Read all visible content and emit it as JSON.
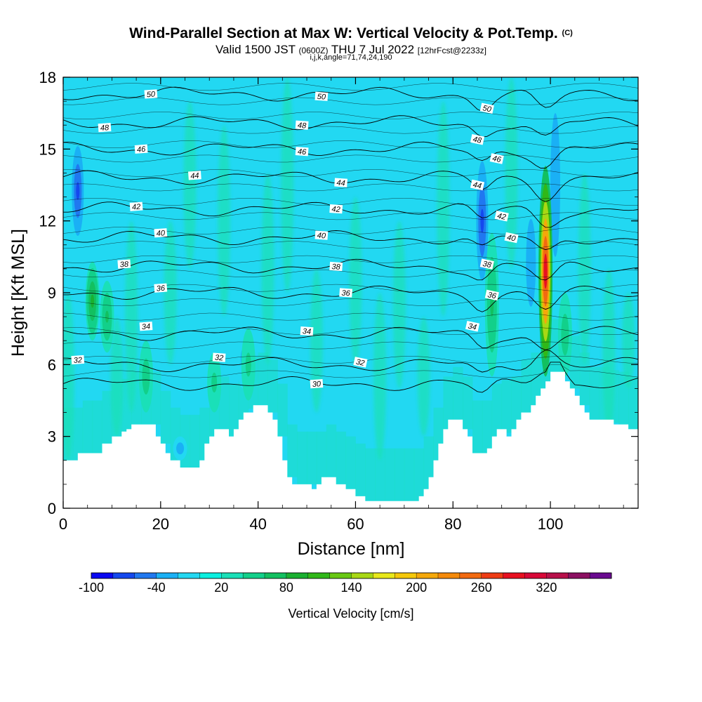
{
  "header": {
    "title": "Wind-Parallel Section at Max W: Vertical Velocity & Pot.Temp.",
    "copyright": "(C)",
    "valid_prefix": "Valid 1500 JST",
    "valid_zulu": "(0600Z)",
    "valid_date": "THU 7 Jul 2022",
    "forecast": "[12hrFcst@2233z]",
    "params": "i,j,k,angle=71,74,24,190"
  },
  "chart_data": {
    "type": "heatmap",
    "xlabel": "Distance [nm]",
    "ylabel": "Height [Kft MSL]",
    "xlim": [
      0,
      118
    ],
    "ylim": [
      0,
      18
    ],
    "x_ticks": [
      0,
      20,
      40,
      60,
      80,
      100
    ],
    "y_ticks": [
      0,
      3,
      6,
      9,
      12,
      15,
      18
    ],
    "colorbar": {
      "label": "Vertical Velocity [cm/s]",
      "tick_labels": [
        "-100",
        "-40",
        "20",
        "80",
        "140",
        "200",
        "260",
        "320"
      ],
      "tick_values": [
        -100,
        -40,
        20,
        80,
        140,
        200,
        260,
        320
      ],
      "min": -100,
      "max": 380,
      "colors": [
        "#0a08f2",
        "#1448ee",
        "#2078f0",
        "#1ab0f5",
        "#22d8f2",
        "#0af0e0",
        "#1ae0b8",
        "#12d08a",
        "#12c060",
        "#1ab030",
        "#30b818",
        "#68c812",
        "#a8d814",
        "#e8e81a",
        "#f5c80a",
        "#f5a80a",
        "#f58a0a",
        "#f26a10",
        "#ee3c14",
        "#e81020",
        "#d80838",
        "#b8104a",
        "#8c1062",
        "#6a0a90"
      ]
    },
    "terrain_kft": [
      [
        0,
        2.0
      ],
      [
        2,
        2.0
      ],
      [
        3,
        2.3
      ],
      [
        7,
        2.3
      ],
      [
        8,
        2.7
      ],
      [
        9,
        2.7
      ],
      [
        10,
        3.0
      ],
      [
        12,
        3.2
      ],
      [
        13,
        3.3
      ],
      [
        14,
        3.5
      ],
      [
        18,
        3.5
      ],
      [
        19,
        3.0
      ],
      [
        20,
        2.7
      ],
      [
        21,
        2.3
      ],
      [
        22,
        2.0
      ],
      [
        24,
        1.7
      ],
      [
        27,
        1.7
      ],
      [
        28,
        2.0
      ],
      [
        29,
        2.7
      ],
      [
        30,
        3.0
      ],
      [
        31,
        3.3
      ],
      [
        33,
        3.3
      ],
      [
        34,
        3.0
      ],
      [
        35,
        3.3
      ],
      [
        36,
        3.7
      ],
      [
        37,
        4.0
      ],
      [
        39,
        4.3
      ],
      [
        41,
        4.3
      ],
      [
        42,
        4.0
      ],
      [
        43,
        3.7
      ],
      [
        44,
        3.0
      ],
      [
        45,
        2.0
      ],
      [
        46,
        1.3
      ],
      [
        47,
        1.0
      ],
      [
        50,
        1.0
      ],
      [
        51,
        0.8
      ],
      [
        52,
        1.0
      ],
      [
        53,
        1.3
      ],
      [
        55,
        1.3
      ],
      [
        56,
        1.0
      ],
      [
        58,
        0.8
      ],
      [
        60,
        0.5
      ],
      [
        62,
        0.3
      ],
      [
        72,
        0.3
      ],
      [
        73,
        0.5
      ],
      [
        74,
        0.8
      ],
      [
        75,
        1.3
      ],
      [
        76,
        2.0
      ],
      [
        77,
        2.7
      ],
      [
        78,
        3.3
      ],
      [
        79,
        3.7
      ],
      [
        81,
        3.7
      ],
      [
        82,
        3.3
      ],
      [
        83,
        3.0
      ],
      [
        84,
        2.3
      ],
      [
        86,
        2.3
      ],
      [
        87,
        2.5
      ],
      [
        88,
        3.0
      ],
      [
        89,
        3.3
      ],
      [
        91,
        3.0
      ],
      [
        92,
        3.3
      ],
      [
        93,
        3.7
      ],
      [
        94,
        4.0
      ],
      [
        96,
        4.3
      ],
      [
        97,
        4.7
      ],
      [
        98,
        5.0
      ],
      [
        99,
        5.3
      ],
      [
        100,
        5.7
      ],
      [
        102,
        5.7
      ],
      [
        103,
        5.3
      ],
      [
        104,
        5.0
      ],
      [
        105,
        4.7
      ],
      [
        106,
        4.3
      ],
      [
        107,
        4.0
      ],
      [
        108,
        3.7
      ],
      [
        110,
        3.7
      ],
      [
        113,
        3.5
      ],
      [
        115,
        3.5
      ],
      [
        116,
        3.3
      ],
      [
        118,
        3.3
      ]
    ],
    "updraft_cores": [
      {
        "x": 99,
        "y_bottom": 5.5,
        "y_top": 14.3,
        "peak_w": 290
      },
      {
        "x": 6,
        "y_bottom": 7.0,
        "y_top": 10.3,
        "peak_w": 80
      },
      {
        "x": 9,
        "y_bottom": 6.5,
        "y_top": 9.5,
        "peak_w": 65
      },
      {
        "x": 88,
        "y_bottom": 5.5,
        "y_top": 11.5,
        "peak_w": 60
      },
      {
        "x": 17,
        "y_bottom": 4.0,
        "y_top": 7.0,
        "peak_w": 50
      },
      {
        "x": 31,
        "y_bottom": 4.0,
        "y_top": 6.5,
        "peak_w": 45
      },
      {
        "x": 38,
        "y_bottom": 4.5,
        "y_top": 7.5,
        "peak_w": 45
      },
      {
        "x": 103,
        "y_bottom": 5.5,
        "y_top": 9.0,
        "peak_w": 50
      }
    ],
    "downdraft_cores": [
      {
        "x": 3,
        "y_bottom": 11.0,
        "y_top": 15.5,
        "min_w": -70
      },
      {
        "x": 86,
        "y_bottom": 9.0,
        "y_top": 15.0,
        "min_w": -70
      },
      {
        "x": 96,
        "y_bottom": 7.5,
        "y_top": 13.0,
        "min_w": -40
      },
      {
        "x": 101,
        "y_bottom": 9.0,
        "y_top": 18.0,
        "min_w": -35
      },
      {
        "x": 37,
        "y_bottom": 5.0,
        "y_top": 7.5,
        "min_w": -25
      },
      {
        "x": 24,
        "y_bottom": 2.0,
        "y_top": 3.0,
        "min_w": -30
      }
    ],
    "isentropes": [
      {
        "value": 30,
        "base_kft": 5.2
      },
      {
        "value": 32,
        "base_kft": 6.0
      },
      {
        "value": 34,
        "base_kft": 7.3
      },
      {
        "value": 36,
        "base_kft": 9.0
      },
      {
        "value": 38,
        "base_kft": 10.1
      },
      {
        "value": 40,
        "base_kft": 11.3
      },
      {
        "value": 42,
        "base_kft": 12.5
      },
      {
        "value": 44,
        "base_kft": 13.8
      },
      {
        "value": 46,
        "base_kft": 15.0
      },
      {
        "value": 48,
        "base_kft": 16.1
      },
      {
        "value": 50,
        "base_kft": 17.3
      }
    ],
    "contour_labels": [
      {
        "text": "50",
        "x": 18,
        "y": 17.3
      },
      {
        "text": "50",
        "x": 53,
        "y": 17.2
      },
      {
        "text": "50",
        "x": 87,
        "y": 16.7
      },
      {
        "text": "48",
        "x": 8.5,
        "y": 15.9
      },
      {
        "text": "48",
        "x": 49,
        "y": 16.0
      },
      {
        "text": "48",
        "x": 85,
        "y": 15.4
      },
      {
        "text": "46",
        "x": 16,
        "y": 15.0
      },
      {
        "text": "46",
        "x": 49,
        "y": 14.9
      },
      {
        "text": "46",
        "x": 89,
        "y": 14.6
      },
      {
        "text": "44",
        "x": 27,
        "y": 13.9
      },
      {
        "text": "44",
        "x": 57,
        "y": 13.6
      },
      {
        "text": "44",
        "x": 85,
        "y": 13.5
      },
      {
        "text": "42",
        "x": 15,
        "y": 12.6
      },
      {
        "text": "42",
        "x": 56,
        "y": 12.5
      },
      {
        "text": "42",
        "x": 90,
        "y": 12.2
      },
      {
        "text": "40",
        "x": 20,
        "y": 11.5
      },
      {
        "text": "40",
        "x": 53,
        "y": 11.4
      },
      {
        "text": "40",
        "x": 92,
        "y": 11.3
      },
      {
        "text": "38",
        "x": 12.5,
        "y": 10.2
      },
      {
        "text": "38",
        "x": 56,
        "y": 10.1
      },
      {
        "text": "38",
        "x": 87,
        "y": 10.2
      },
      {
        "text": "36",
        "x": 20,
        "y": 9.2
      },
      {
        "text": "36",
        "x": 58,
        "y": 9.0
      },
      {
        "text": "36",
        "x": 88,
        "y": 8.9
      },
      {
        "text": "34",
        "x": 17,
        "y": 7.6
      },
      {
        "text": "34",
        "x": 50,
        "y": 7.4
      },
      {
        "text": "34",
        "x": 84,
        "y": 7.6
      },
      {
        "text": "32",
        "x": 3,
        "y": 6.2
      },
      {
        "text": "32",
        "x": 32,
        "y": 6.3
      },
      {
        "text": "32",
        "x": 61,
        "y": 6.1
      },
      {
        "text": "30",
        "x": 52,
        "y": 5.2
      }
    ]
  }
}
